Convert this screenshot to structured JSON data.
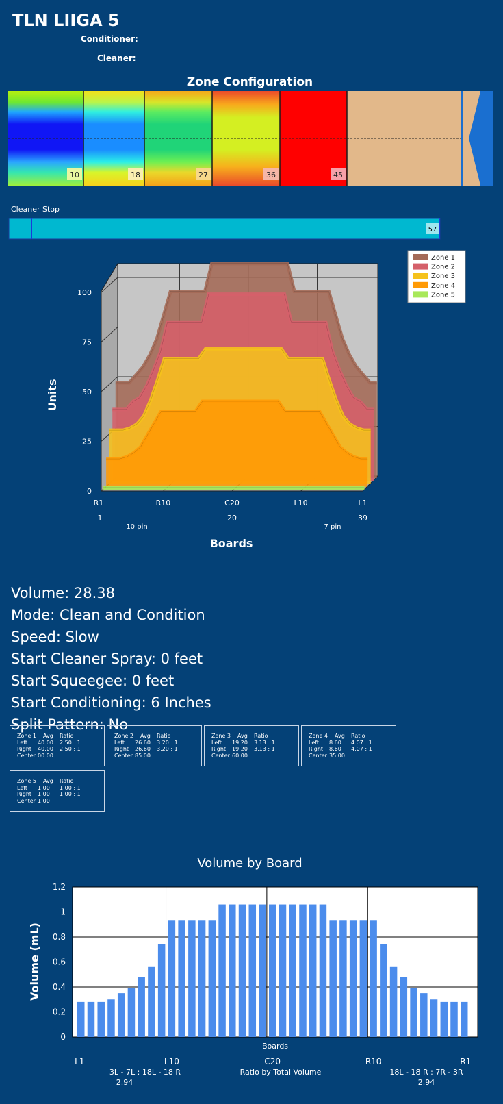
{
  "header": {
    "title": "TLN LIIGA 5",
    "conditioner_label": "Conditioner:",
    "cleaner_label": "Cleaner:"
  },
  "zone_config": {
    "title": "Zone Configuration",
    "markers": [
      "10",
      "18",
      "27",
      "36",
      "45"
    ]
  },
  "cleaner_stop": {
    "label": "Cleaner Stop",
    "value": "57"
  },
  "stats": {
    "volume": "Volume: 28.38",
    "mode": "Mode: Clean and Condition",
    "speed": "Speed: Slow",
    "start_cleaner_spray": "Start Cleaner Spray: 0 feet",
    "start_squeegee": "Start Squeegee: 0 feet",
    "start_conditioning": "Start Conditioning: 6 Inches",
    "split_pattern": "Split Pattern: No"
  },
  "zone_tables": [
    {
      "name": "Zone 1",
      "h_avg": "Avg",
      "h_ratio": "Ratio",
      "left_label": "Left",
      "left_avg": "40.00",
      "left_ratio": "2.50 : 1",
      "right_label": "Right",
      "right_avg": "40.00",
      "right_ratio": "2.50 : 1",
      "center_label": "Center",
      "center_avg": "00.00"
    },
    {
      "name": "Zone 2",
      "h_avg": "Avg",
      "h_ratio": "Ratio",
      "left_label": "Left",
      "left_avg": "26.60",
      "left_ratio": "3.20 : 1",
      "right_label": "Right",
      "right_avg": "26.60",
      "right_ratio": "3.20 : 1",
      "center_label": "Center",
      "center_avg": "85.00"
    },
    {
      "name": "Zone 3",
      "h_avg": "Avg",
      "h_ratio": "Ratio",
      "left_label": "Left",
      "left_avg": "19.20",
      "left_ratio": "3.13 : 1",
      "right_label": "Right",
      "right_avg": "19.20",
      "right_ratio": "3.13 : 1",
      "center_label": "Center",
      "center_avg": "60.00"
    },
    {
      "name": "Zone 4",
      "h_avg": "Avg",
      "h_ratio": "Ratio",
      "left_label": "Left",
      "left_avg": "8.60",
      "left_ratio": "4.07 : 1",
      "right_label": "Right",
      "right_avg": "8.60",
      "right_ratio": "4.07 : 1",
      "center_label": "Center",
      "center_avg": "35.00"
    },
    {
      "name": "Zone 5",
      "h_avg": "Avg",
      "h_ratio": "Ratio",
      "left_label": "Left",
      "left_avg": "1.00",
      "left_ratio": "1.00 : 1",
      "right_label": "Right",
      "right_avg": "1.00",
      "right_ratio": "1.00 : 1",
      "center_label": "Center",
      "center_avg": "1.00"
    }
  ],
  "chart_data": [
    {
      "type": "area",
      "title": "",
      "xlabel": "Boards",
      "ylabel": "Units",
      "ylim": [
        0,
        100
      ],
      "yticks": [
        "0",
        "25",
        "50",
        "75",
        "100"
      ],
      "xtick_labels": [
        "R1",
        "R10",
        "C20",
        "L10",
        "L1"
      ],
      "xtick_numbers": [
        "1",
        "20",
        "39"
      ],
      "pin_labels": [
        "10 pin",
        "7 pin"
      ],
      "legend": [
        "Zone 1",
        "Zone 2",
        "Zone 3",
        "Zone 4",
        "Zone 5"
      ],
      "colors": [
        "#a46a57",
        "#d5606a",
        "#f5c21c",
        "#ff9a05",
        "#a8e85a"
      ],
      "x": [
        1,
        2,
        3,
        4,
        5,
        6,
        7,
        8,
        9,
        10,
        11,
        12,
        13,
        14,
        15,
        16,
        17,
        18,
        19,
        20,
        21,
        22,
        23,
        24,
        25,
        26,
        27,
        28,
        29,
        30,
        31,
        32,
        33,
        34,
        35,
        36,
        37,
        38,
        39
      ],
      "series": [
        {
          "name": "Zone 1",
          "values": [
            48,
            48,
            48,
            52,
            56,
            62,
            70,
            82,
            94,
            94,
            94,
            94,
            94,
            94,
            108,
            108,
            108,
            108,
            108,
            108,
            108,
            108,
            108,
            108,
            108,
            108,
            94,
            94,
            94,
            94,
            94,
            94,
            82,
            70,
            62,
            56,
            52,
            48,
            48
          ]
        },
        {
          "name": "Zone 2",
          "values": [
            36,
            36,
            36,
            40,
            42,
            48,
            56,
            65,
            80,
            80,
            80,
            80,
            80,
            80,
            94,
            94,
            94,
            94,
            94,
            94,
            94,
            94,
            94,
            94,
            94,
            94,
            80,
            80,
            80,
            80,
            80,
            80,
            65,
            56,
            48,
            42,
            40,
            36,
            36
          ]
        },
        {
          "name": "Zone 3",
          "values": [
            27,
            27,
            27,
            28,
            30,
            34,
            42,
            52,
            63,
            63,
            63,
            63,
            63,
            63,
            68,
            68,
            68,
            68,
            68,
            68,
            68,
            68,
            68,
            68,
            68,
            68,
            63,
            63,
            63,
            63,
            63,
            63,
            52,
            42,
            34,
            30,
            28,
            27,
            27
          ]
        },
        {
          "name": "Zone 4",
          "values": [
            14,
            14,
            14,
            15,
            17,
            20,
            26,
            32,
            38,
            38,
            38,
            38,
            38,
            38,
            43,
            43,
            43,
            43,
            43,
            43,
            43,
            43,
            43,
            43,
            43,
            43,
            38,
            38,
            38,
            38,
            38,
            38,
            32,
            26,
            20,
            17,
            15,
            14,
            14
          ]
        },
        {
          "name": "Zone 5",
          "values": [
            1,
            1,
            1,
            1,
            1,
            1,
            1,
            1,
            1,
            1,
            1,
            1,
            1,
            1,
            1,
            1,
            1,
            1,
            1,
            1,
            1,
            1,
            1,
            1,
            1,
            1,
            1,
            1,
            1,
            1,
            1,
            1,
            1,
            1,
            1,
            1,
            1,
            1,
            1
          ]
        }
      ]
    },
    {
      "type": "bar",
      "title": "Volume by Board",
      "xlabel": "Boards",
      "ylabel": "Volume (mL)",
      "ylim": [
        0,
        1.2
      ],
      "yticks": [
        "0",
        "0.2",
        "0.4",
        "0.6",
        "0.8",
        "1",
        "1.2"
      ],
      "x_labels": [
        "L1",
        "L10",
        "C20",
        "R10",
        "R1"
      ],
      "ratio_left": "3L - 7L : 18L - 18 R",
      "ratio_left_value": "2.94",
      "ratio_center": "Ratio by Total Volume",
      "ratio_right": "18L - 18 R : 7R - 3R",
      "ratio_right_value": "2.94",
      "color": "#4b8cec",
      "values": [
        0.28,
        0.28,
        0.28,
        0.3,
        0.35,
        0.39,
        0.48,
        0.56,
        0.74,
        0.93,
        0.93,
        0.93,
        0.93,
        0.93,
        1.06,
        1.06,
        1.06,
        1.06,
        1.06,
        1.06,
        1.06,
        1.06,
        1.06,
        1.06,
        1.06,
        0.93,
        0.93,
        0.93,
        0.93,
        0.93,
        0.74,
        0.56,
        0.48,
        0.39,
        0.35,
        0.3,
        0.28,
        0.28,
        0.28
      ]
    }
  ]
}
